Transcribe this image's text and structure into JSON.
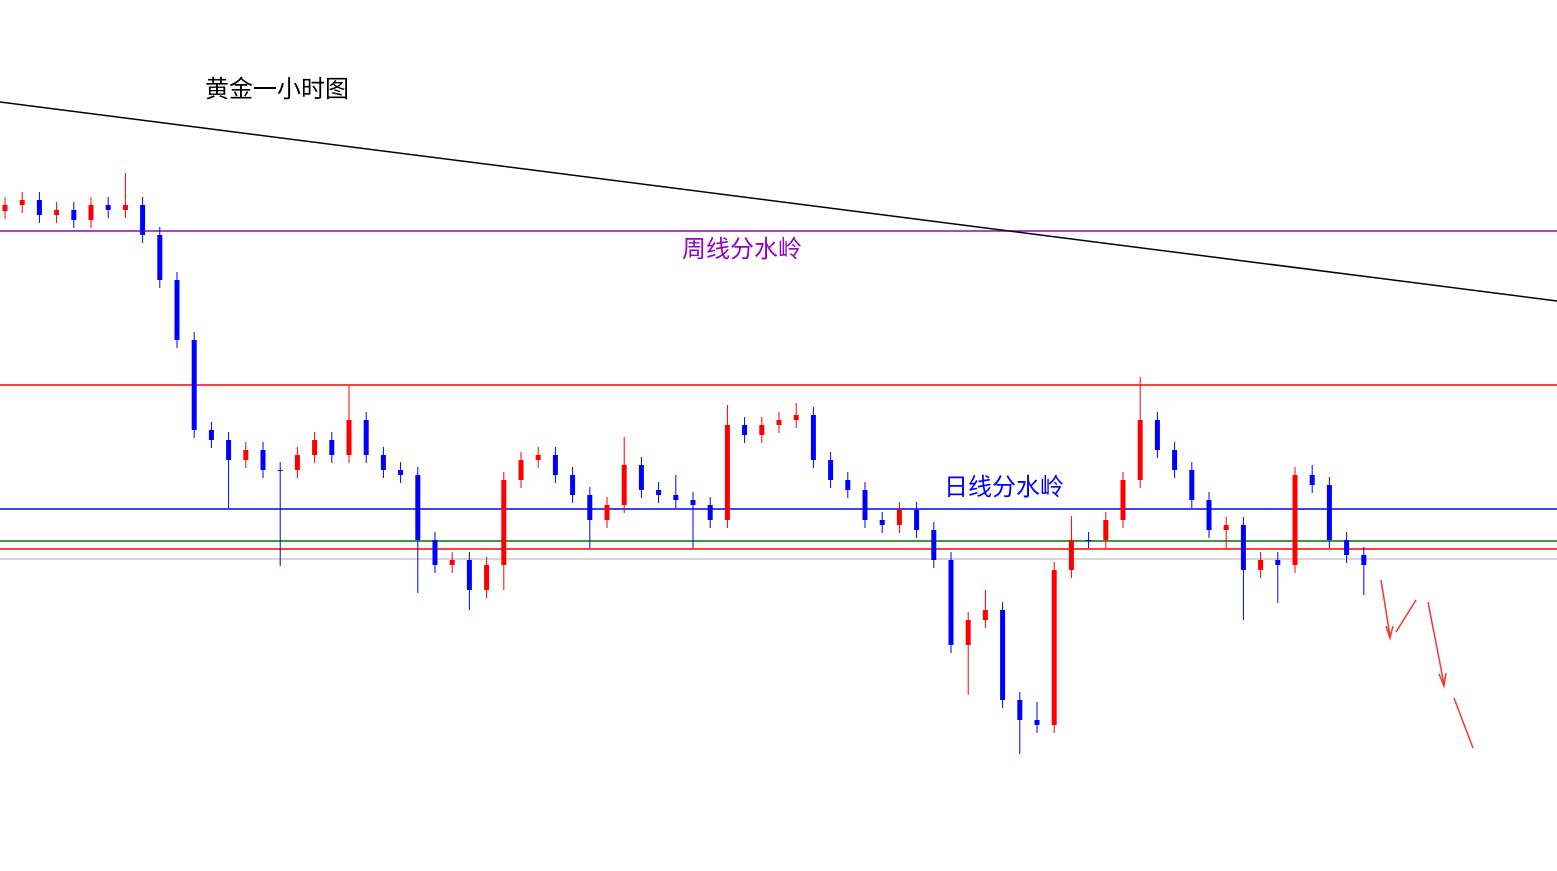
{
  "chart_data": {
    "type": "candlestick",
    "title": "黄金一小时图",
    "ylim": [
      0,
      871
    ],
    "up_color": "#ff0000",
    "down_color": "#0000ff",
    "open": [
      660,
      666,
      671,
      656,
      661,
      651,
      666,
      661,
      666,
      636,
      591,
      531,
      441,
      431,
      411,
      421,
      401,
      401,
      416,
      431,
      416,
      451,
      416,
      401,
      396,
      331,
      306,
      311,
      281,
      306,
      391,
      411,
      416,
      396,
      376,
      351,
      366,
      406,
      381,
      376,
      371,
      366,
      351,
      446,
      436,
      446,
      451,
      456,
      411,
      391,
      381,
      351,
      346,
      361,
      341,
      311,
      226,
      251,
      261,
      171,
      151,
      146,
      301,
      331,
      331,
      351,
      391,
      451,
      421,
      401,
      371,
      341,
      346,
      301,
      311,
      306,
      396,
      386,
      331,
      316
    ],
    "high": [
      674,
      679,
      679,
      669,
      669,
      674,
      674,
      698,
      674,
      644,
      599,
      539,
      449,
      439,
      429,
      429,
      409,
      424,
      439,
      439,
      485,
      459,
      424,
      409,
      404,
      339,
      319,
      319,
      314,
      399,
      419,
      424,
      424,
      404,
      384,
      374,
      434,
      414,
      389,
      396,
      379,
      374,
      466,
      454,
      454,
      459,
      468,
      464,
      419,
      399,
      389,
      359,
      369,
      369,
      349,
      319,
      259,
      281,
      269,
      179,
      169,
      309,
      355,
      339,
      359,
      399,
      494,
      459,
      429,
      409,
      379,
      354,
      354,
      319,
      319,
      404,
      406,
      394,
      339,
      324
    ],
    "low": [
      652,
      658,
      648,
      648,
      643,
      643,
      653,
      653,
      628,
      583,
      523,
      433,
      423,
      363,
      403,
      393,
      305,
      393,
      408,
      408,
      408,
      408,
      393,
      388,
      278,
      298,
      298,
      261,
      273,
      281,
      383,
      403,
      388,
      368,
      323,
      343,
      358,
      373,
      368,
      363,
      323,
      343,
      343,
      428,
      428,
      438,
      443,
      403,
      383,
      373,
      343,
      338,
      338,
      333,
      303,
      218,
      176,
      243,
      163,
      117,
      138,
      138,
      293,
      323,
      323,
      343,
      383,
      413,
      393,
      363,
      333,
      323,
      251,
      293,
      268,
      298,
      378,
      323,
      308,
      276
    ],
    "close": [
      666,
      671,
      656,
      661,
      651,
      666,
      661,
      666,
      636,
      591,
      531,
      441,
      431,
      411,
      421,
      401,
      401,
      416,
      431,
      416,
      451,
      416,
      401,
      396,
      331,
      306,
      311,
      281,
      306,
      391,
      411,
      416,
      396,
      376,
      351,
      366,
      406,
      381,
      376,
      371,
      366,
      351,
      446,
      436,
      446,
      451,
      456,
      411,
      391,
      381,
      351,
      346,
      361,
      341,
      311,
      226,
      251,
      261,
      171,
      151,
      146,
      301,
      331,
      331,
      351,
      391,
      451,
      421,
      401,
      371,
      341,
      346,
      301,
      311,
      306,
      396,
      386,
      331,
      316,
      306
    ],
    "trendline": {
      "color": "#000000",
      "values": [
        769,
        570
      ]
    },
    "hlines": [
      {
        "value": 640,
        "color": "#9900cc",
        "label": "周线分水岭"
      },
      {
        "value": 486,
        "color": "#ff0000"
      },
      {
        "value": 362,
        "color": "#0000ff",
        "label": "日线分水岭"
      },
      {
        "value": 330,
        "color": "#007700"
      },
      {
        "value": 322,
        "color": "#ff0000"
      },
      {
        "value": 312,
        "color": "#c8c8c8"
      }
    ]
  }
}
